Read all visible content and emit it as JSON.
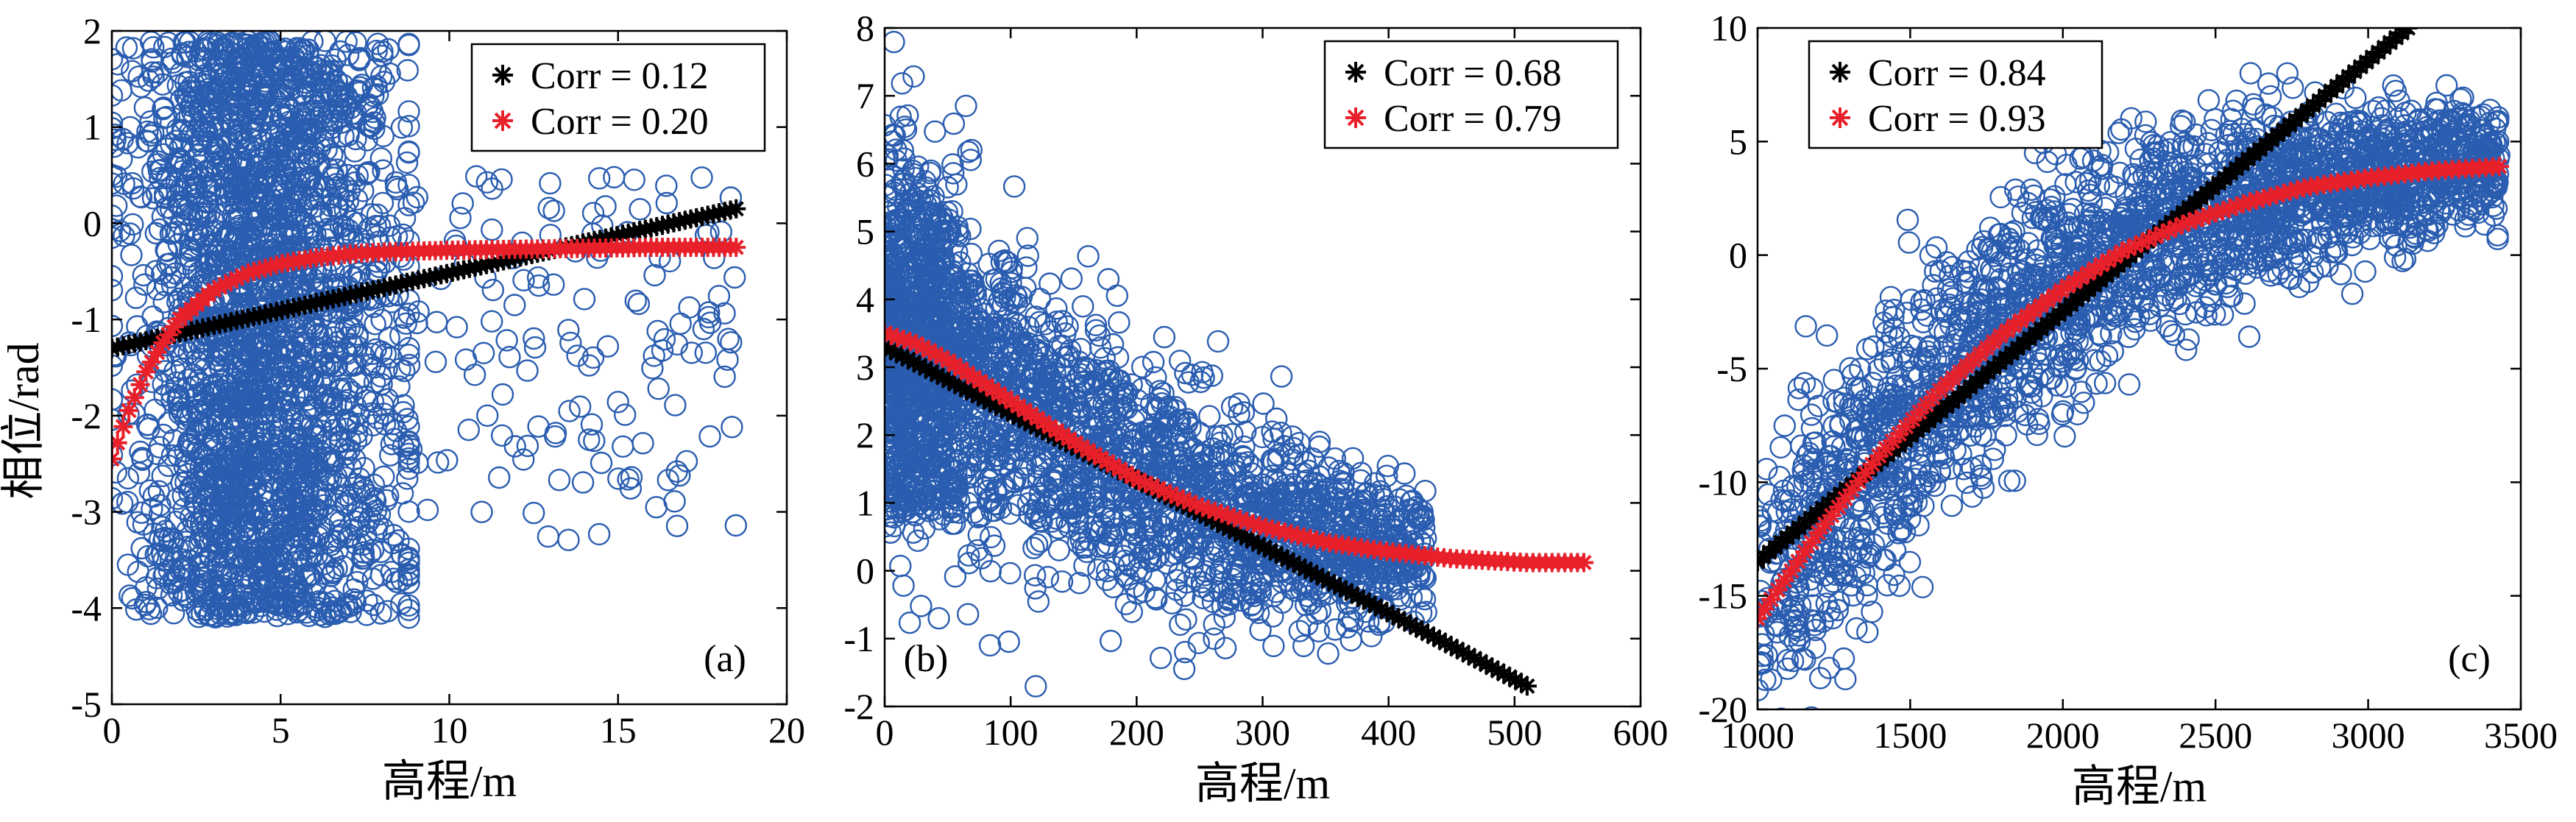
{
  "y_label": "相位/rad",
  "chart_data": [
    {
      "type": "scatter",
      "panel_label": "(a)",
      "xlabel": "高程/m",
      "ylabel": "相位/rad",
      "xlim": [
        0,
        20
      ],
      "ylim": [
        -5,
        2
      ],
      "xticks": [
        "0",
        "5",
        "10",
        "15",
        "20"
      ],
      "yticks": [
        "-5",
        "-4",
        "-3",
        "-2",
        "-1",
        "0",
        "1",
        "2"
      ],
      "legend_position": "top-right",
      "legend": [
        {
          "label": "Corr = 0.12",
          "color": "#000000",
          "marker": "asterisk"
        },
        {
          "label": "Corr = 0.20",
          "color": "#e8202a",
          "marker": "asterisk"
        }
      ],
      "scatter": {
        "color": "#2a5db0",
        "marker": "open-circle"
      },
      "fits": {
        "linear": {
          "x": [
            0,
            18.5
          ],
          "y": [
            -1.3,
            0.15
          ]
        },
        "nonlinear": {
          "x": [
            0,
            0.5,
            1,
            1.5,
            2,
            3,
            4,
            5,
            6,
            7,
            8,
            10,
            12,
            14,
            16,
            18.5
          ],
          "y": [
            -2.45,
            -1.95,
            -1.55,
            -1.25,
            -1.0,
            -0.7,
            -0.52,
            -0.42,
            -0.36,
            -0.32,
            -0.3,
            -0.28,
            -0.27,
            -0.26,
            -0.25,
            -0.25
          ]
        }
      }
    },
    {
      "type": "scatter",
      "panel_label": "(b)",
      "xlabel": "高程/m",
      "ylabel": "",
      "xlim": [
        0,
        600
      ],
      "ylim": [
        -2,
        8
      ],
      "xticks": [
        "0",
        "100",
        "200",
        "300",
        "400",
        "500",
        "600"
      ],
      "yticks": [
        "-2",
        "-1",
        "0",
        "1",
        "2",
        "3",
        "4",
        "5",
        "6",
        "7",
        "8"
      ],
      "legend_position": "top-right",
      "legend": [
        {
          "label": "Corr = 0.68",
          "color": "#000000",
          "marker": "asterisk"
        },
        {
          "label": "Corr = 0.79",
          "color": "#e8202a",
          "marker": "asterisk"
        }
      ],
      "scatter": {
        "color": "#2a5db0",
        "marker": "open-circle"
      },
      "fits": {
        "linear": {
          "x": [
            0,
            510
          ],
          "y": [
            3.3,
            -1.7
          ]
        },
        "nonlinear": {
          "x": [
            0,
            25,
            50,
            100,
            150,
            200,
            250,
            300,
            350,
            400,
            450,
            510,
            555
          ],
          "y": [
            3.5,
            3.35,
            3.1,
            2.5,
            1.9,
            1.35,
            0.95,
            0.65,
            0.42,
            0.28,
            0.18,
            0.12,
            0.12
          ]
        }
      }
    },
    {
      "type": "scatter",
      "panel_label": "(c)",
      "xlabel": "高程/m",
      "ylabel": "",
      "xlim": [
        1000,
        3500
      ],
      "ylim": [
        -20,
        10
      ],
      "xticks": [
        "1000",
        "1500",
        "2000",
        "2500",
        "3000",
        "3500"
      ],
      "yticks": [
        "-20",
        "-15",
        "-10",
        "-5",
        "0",
        "5",
        "10"
      ],
      "legend_position": "top-left",
      "legend": [
        {
          "label": "Corr = 0.84",
          "color": "#000000",
          "marker": "asterisk"
        },
        {
          "label": "Corr = 0.93",
          "color": "#e8202a",
          "marker": "asterisk"
        }
      ],
      "scatter": {
        "color": "#2a5db0",
        "marker": "open-circle"
      },
      "fits": {
        "linear": {
          "x": [
            1000,
            3130
          ],
          "y": [
            -13.5,
            10
          ]
        },
        "nonlinear": {
          "x": [
            1000,
            1200,
            1400,
            1600,
            1800,
            2000,
            2200,
            2400,
            2600,
            2800,
            3000,
            3200,
            3430
          ],
          "y": [
            -16,
            -12.2,
            -8.8,
            -5.9,
            -3.5,
            -1.5,
            0.2,
            1.4,
            2.3,
            3.0,
            3.4,
            3.7,
            3.9
          ]
        }
      }
    }
  ]
}
